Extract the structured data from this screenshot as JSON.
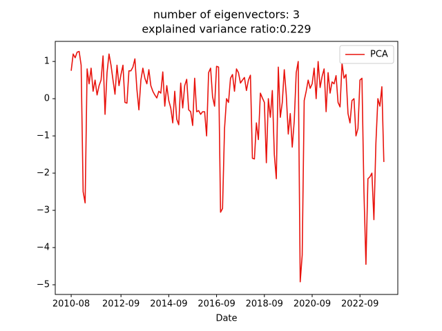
{
  "chart_data": {
    "type": "line",
    "title": "number of eigenvectors: 3",
    "subtitle": "explained variance ratio:0.229",
    "x_label": "Date",
    "x": [
      "2010-08",
      "2010-09",
      "2010-10",
      "2010-11",
      "2010-12",
      "2011-01",
      "2011-02",
      "2011-03",
      "2011-04",
      "2011-05",
      "2011-06",
      "2011-07",
      "2011-08",
      "2011-09",
      "2011-10",
      "2011-11",
      "2011-12",
      "2012-01",
      "2012-02",
      "2012-03",
      "2012-04",
      "2012-05",
      "2012-06",
      "2012-07",
      "2012-08",
      "2012-09",
      "2012-10",
      "2012-11",
      "2012-12",
      "2013-01",
      "2013-02",
      "2013-03",
      "2013-04",
      "2013-05",
      "2013-06",
      "2013-07",
      "2013-08",
      "2013-09",
      "2013-10",
      "2013-11",
      "2013-12",
      "2014-01",
      "2014-02",
      "2014-03",
      "2014-04",
      "2014-05",
      "2014-06",
      "2014-07",
      "2014-08",
      "2014-09",
      "2014-10",
      "2014-11",
      "2014-12",
      "2015-01",
      "2015-02",
      "2015-03",
      "2015-04",
      "2015-05",
      "2015-06",
      "2015-07",
      "2015-08",
      "2015-09",
      "2015-10",
      "2015-11",
      "2015-12",
      "2016-01",
      "2016-02",
      "2016-03",
      "2016-04",
      "2016-05",
      "2016-06",
      "2016-07",
      "2016-08",
      "2016-09",
      "2016-10",
      "2016-11",
      "2016-12",
      "2017-01",
      "2017-02",
      "2017-03",
      "2017-04",
      "2017-05",
      "2017-06",
      "2017-07",
      "2017-08",
      "2017-09",
      "2017-10",
      "2017-11",
      "2017-12",
      "2018-01",
      "2018-02",
      "2018-03",
      "2018-04",
      "2018-05",
      "2018-06",
      "2018-07",
      "2018-08",
      "2018-09",
      "2018-10",
      "2018-11",
      "2018-12",
      "2019-01",
      "2019-02",
      "2019-03",
      "2019-04",
      "2019-05",
      "2019-06",
      "2019-07",
      "2019-08",
      "2019-09",
      "2019-10",
      "2019-11",
      "2019-12",
      "2020-01",
      "2020-02",
      "2020-03",
      "2020-04",
      "2020-05",
      "2020-06",
      "2020-07",
      "2020-08",
      "2020-09",
      "2020-10",
      "2020-11",
      "2020-12",
      "2021-01",
      "2021-02",
      "2021-03",
      "2021-04",
      "2021-05",
      "2021-06",
      "2021-07",
      "2021-08",
      "2021-09",
      "2021-10",
      "2021-11",
      "2021-12",
      "2022-01",
      "2022-02",
      "2022-03",
      "2022-04",
      "2022-05",
      "2022-06",
      "2022-07",
      "2022-08",
      "2022-09",
      "2022-10",
      "2022-11",
      "2022-12",
      "2023-01",
      "2023-02",
      "2023-03",
      "2023-04",
      "2023-05",
      "2023-06",
      "2023-07",
      "2023-08",
      "2023-09"
    ],
    "series": [
      {
        "name": "PCA",
        "color": "#e8120c",
        "values": [
          0.75,
          1.2,
          1.1,
          1.25,
          1.27,
          0.9,
          -2.5,
          -2.8,
          0.8,
          0.4,
          0.82,
          0.2,
          0.5,
          0.1,
          0.35,
          0.5,
          1.15,
          -0.42,
          0.7,
          1.2,
          0.9,
          0.5,
          0.12,
          0.9,
          0.35,
          0.65,
          0.9,
          -0.1,
          -0.12,
          0.75,
          0.75,
          0.85,
          1.07,
          0.25,
          -0.3,
          0.5,
          0.82,
          0.55,
          0.4,
          0.78,
          0.35,
          0.2,
          0.1,
          0.02,
          0.2,
          0.15,
          0.72,
          -0.2,
          0.35,
          -0.05,
          -0.25,
          -0.65,
          0.2,
          -0.55,
          -0.7,
          0.42,
          -0.25,
          0.35,
          0.52,
          -0.3,
          -0.35,
          -0.72,
          0.55,
          -0.35,
          -0.32,
          -0.42,
          -0.35,
          -0.35,
          -1.0,
          0.7,
          0.82,
          0.05,
          -0.2,
          0.87,
          0.85,
          -3.05,
          -2.95,
          -0.8,
          0.0,
          -0.1,
          0.55,
          0.65,
          0.2,
          0.8,
          0.7,
          0.42,
          0.5,
          0.57,
          0.22,
          0.5,
          0.63,
          -1.6,
          -1.62,
          -0.65,
          -1.1,
          0.15,
          0.02,
          -0.1,
          -1.72,
          0.0,
          -0.5,
          0.22,
          -1.5,
          -2.15,
          0.85,
          -0.5,
          -0.1,
          0.78,
          0.1,
          -0.95,
          -0.4,
          -1.3,
          -0.6,
          0.7,
          1.0,
          -4.92,
          -4.2,
          -0.05,
          0.2,
          0.5,
          0.28,
          0.4,
          0.82,
          0.0,
          1.0,
          0.3,
          0.6,
          0.8,
          -0.35,
          0.7,
          0.15,
          0.45,
          0.4,
          0.62,
          -0.1,
          -0.22,
          0.95,
          0.55,
          0.65,
          -0.4,
          -0.65,
          -0.05,
          0.0,
          -1.0,
          -0.8,
          0.5,
          0.55,
          -2.5,
          -4.45,
          -2.15,
          -2.1,
          -2.0,
          -3.25,
          -1.2,
          0.0,
          -0.2,
          0.32,
          -1.7
        ]
      }
    ],
    "xlim": [
      "2009-12",
      "2024-04"
    ],
    "xticks": [
      "2010-08",
      "2012-09",
      "2014-09",
      "2016-09",
      "2018-09",
      "2020-09",
      "2022-09"
    ],
    "ylim": [
      -5.26,
      1.54
    ],
    "yticks": [
      {
        "value": -5,
        "label": "−5"
      },
      {
        "value": -4,
        "label": "−4"
      },
      {
        "value": -3,
        "label": "−3"
      },
      {
        "value": -2,
        "label": "−2"
      },
      {
        "value": -1,
        "label": "−1"
      },
      0,
      1
    ],
    "legend": "upper right"
  }
}
